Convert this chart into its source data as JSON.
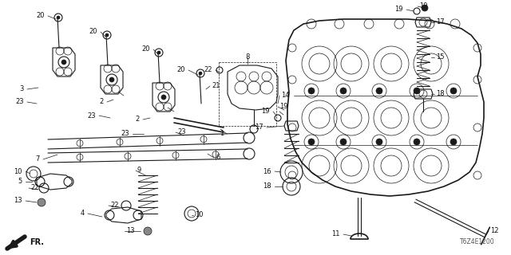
{
  "bg_color": "#ffffff",
  "line_color": "#1a1a1a",
  "label_color": "#111111",
  "diagram_code": "T6Z4E1200",
  "font_size": 6.0
}
